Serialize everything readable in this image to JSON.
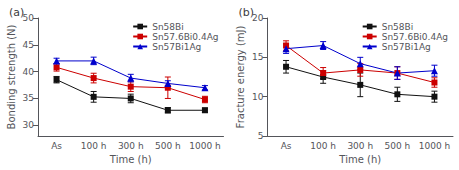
{
  "chart_data": [
    {
      "type": "line",
      "title": "(a)",
      "xlabel": "Time (h)",
      "ylabel": "Bonding strength (N)",
      "categories": [
        "As",
        "100 h",
        "300 h",
        "500 h",
        "1000 h"
      ],
      "series": [
        {
          "name": "Sn58Bi",
          "color": "#111111",
          "marker": "square",
          "values": [
            38.5,
            35.3,
            35.0,
            32.8,
            32.8
          ],
          "errors": [
            0.6,
            1.0,
            0.8,
            0.5,
            0.4
          ]
        },
        {
          "name": "Sn57.6Bi0.4Ag",
          "color": "#cc0000",
          "marker": "square",
          "values": [
            40.8,
            38.8,
            37.2,
            37.0,
            34.8
          ],
          "errors": [
            0.7,
            0.9,
            0.9,
            2.0,
            0.6
          ]
        },
        {
          "name": "Sn57Bi1Ag",
          "color": "#0000cc",
          "marker": "triangle",
          "values": [
            42.0,
            42.0,
            38.8,
            37.8,
            37.0
          ],
          "errors": [
            0.5,
            0.7,
            0.7,
            0.5,
            0.4
          ]
        }
      ],
      "ylim": [
        28,
        50
      ],
      "yticks": [
        30,
        35,
        40,
        45,
        50
      ],
      "grid": false,
      "legend": "upper right"
    },
    {
      "type": "line",
      "title": "(b)",
      "xlabel": "Time (h)",
      "ylabel": "Fracture energy (mJ)",
      "categories": [
        "As",
        "100 h",
        "300 h",
        "500 h",
        "1000 h"
      ],
      "series": [
        {
          "name": "Sn58Bi",
          "color": "#111111",
          "marker": "square",
          "values": [
            13.8,
            12.5,
            11.5,
            10.3,
            10.0
          ],
          "errors": [
            0.8,
            0.8,
            1.5,
            0.9,
            0.7
          ]
        },
        {
          "name": "Sn57.6Bi0.4Ag",
          "color": "#cc0000",
          "marker": "square",
          "values": [
            16.5,
            13.0,
            13.4,
            13.0,
            11.8
          ],
          "errors": [
            0.6,
            0.7,
            0.8,
            0.8,
            0.6
          ]
        },
        {
          "name": "Sn57Bi1Ag",
          "color": "#0000cc",
          "marker": "triangle",
          "values": [
            16.1,
            16.5,
            14.2,
            13.0,
            13.3
          ],
          "errors": [
            0.6,
            0.5,
            0.8,
            0.8,
            0.7
          ]
        }
      ],
      "ylim": [
        5,
        20
      ],
      "yticks": [
        5,
        10,
        15,
        20
      ],
      "grid": false,
      "legend": "upper right"
    }
  ]
}
